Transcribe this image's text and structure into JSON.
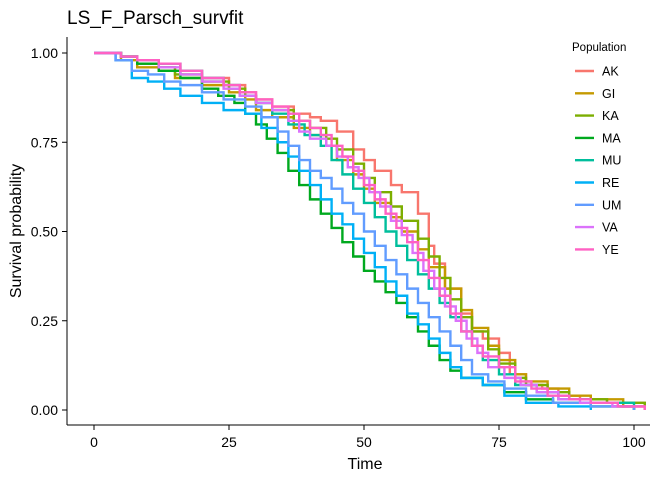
{
  "chart_data": {
    "type": "line",
    "title": "LS_F_Parsch_survfit",
    "xlabel": "Time",
    "ylabel": "Survival probability",
    "xlim": [
      0,
      102
    ],
    "ylim": [
      0,
      1.0
    ],
    "x_ticks": [
      0,
      25,
      50,
      75,
      100
    ],
    "x_tick_labels": [
      "0",
      "25",
      "50",
      "75",
      "100"
    ],
    "y_ticks": [
      0,
      0.25,
      0.5,
      0.75,
      1.0
    ],
    "y_tick_labels": [
      "0.00",
      "0.25",
      "0.50",
      "0.75",
      "1.00"
    ],
    "grid": false,
    "step": true,
    "legend": {
      "title": "Population",
      "position": "right"
    },
    "series": [
      {
        "name": "AK",
        "color": "#F8766D",
        "points": [
          [
            0,
            1.0
          ],
          [
            5,
            0.99
          ],
          [
            8,
            0.97
          ],
          [
            12,
            0.96
          ],
          [
            15,
            0.95
          ],
          [
            20,
            0.93
          ],
          [
            25,
            0.91
          ],
          [
            28,
            0.89
          ],
          [
            30,
            0.87
          ],
          [
            33,
            0.85
          ],
          [
            37,
            0.83
          ],
          [
            40,
            0.82
          ],
          [
            42,
            0.81
          ],
          [
            45,
            0.78
          ],
          [
            48,
            0.73
          ],
          [
            50,
            0.7
          ],
          [
            52,
            0.67
          ],
          [
            55,
            0.63
          ],
          [
            57,
            0.61
          ],
          [
            60,
            0.55
          ],
          [
            62,
            0.46
          ],
          [
            63,
            0.41
          ],
          [
            65,
            0.34
          ],
          [
            68,
            0.27
          ],
          [
            70,
            0.22
          ],
          [
            72,
            0.2
          ],
          [
            75,
            0.16
          ],
          [
            77,
            0.1
          ],
          [
            80,
            0.07
          ],
          [
            83,
            0.06
          ],
          [
            86,
            0.04
          ],
          [
            90,
            0.03
          ],
          [
            95,
            0.02
          ],
          [
            102,
            0.01
          ]
        ]
      },
      {
        "name": "GI",
        "color": "#C49A00",
        "points": [
          [
            0,
            1.0
          ],
          [
            5,
            0.98
          ],
          [
            8,
            0.96
          ],
          [
            12,
            0.95
          ],
          [
            15,
            0.93
          ],
          [
            20,
            0.91
          ],
          [
            25,
            0.89
          ],
          [
            28,
            0.87
          ],
          [
            30,
            0.84
          ],
          [
            33,
            0.82
          ],
          [
            37,
            0.79
          ],
          [
            40,
            0.77
          ],
          [
            43,
            0.74
          ],
          [
            45,
            0.7
          ],
          [
            48,
            0.66
          ],
          [
            50,
            0.62
          ],
          [
            52,
            0.58
          ],
          [
            55,
            0.54
          ],
          [
            57,
            0.5
          ],
          [
            60,
            0.45
          ],
          [
            62,
            0.4
          ],
          [
            65,
            0.34
          ],
          [
            68,
            0.28
          ],
          [
            70,
            0.23
          ],
          [
            73,
            0.18
          ],
          [
            75,
            0.14
          ],
          [
            78,
            0.1
          ],
          [
            80,
            0.08
          ],
          [
            84,
            0.06
          ],
          [
            88,
            0.04
          ],
          [
            92,
            0.03
          ],
          [
            98,
            0.01
          ],
          [
            102,
            0.0
          ]
        ]
      },
      {
        "name": "KA",
        "color": "#7CAE00",
        "points": [
          [
            0,
            1.0
          ],
          [
            5,
            0.99
          ],
          [
            8,
            0.97
          ],
          [
            12,
            0.96
          ],
          [
            15,
            0.94
          ],
          [
            20,
            0.92
          ],
          [
            25,
            0.9
          ],
          [
            28,
            0.88
          ],
          [
            30,
            0.86
          ],
          [
            33,
            0.84
          ],
          [
            37,
            0.81
          ],
          [
            40,
            0.79
          ],
          [
            43,
            0.76
          ],
          [
            45,
            0.73
          ],
          [
            48,
            0.69
          ],
          [
            50,
            0.65
          ],
          [
            52,
            0.61
          ],
          [
            55,
            0.57
          ],
          [
            57,
            0.53
          ],
          [
            60,
            0.48
          ],
          [
            62,
            0.43
          ],
          [
            64,
            0.37
          ],
          [
            66,
            0.31
          ],
          [
            68,
            0.26
          ],
          [
            70,
            0.22
          ],
          [
            73,
            0.17
          ],
          [
            75,
            0.13
          ],
          [
            78,
            0.09
          ],
          [
            80,
            0.07
          ],
          [
            84,
            0.05
          ],
          [
            88,
            0.03
          ],
          [
            95,
            0.02
          ],
          [
            102,
            0.0
          ]
        ]
      },
      {
        "name": "MA",
        "color": "#00A91F",
        "points": [
          [
            0,
            1.0
          ],
          [
            5,
            0.99
          ],
          [
            8,
            0.97
          ],
          [
            12,
            0.95
          ],
          [
            16,
            0.93
          ],
          [
            20,
            0.9
          ],
          [
            23,
            0.88
          ],
          [
            26,
            0.86
          ],
          [
            28,
            0.83
          ],
          [
            30,
            0.8
          ],
          [
            32,
            0.76
          ],
          [
            34,
            0.72
          ],
          [
            36,
            0.67
          ],
          [
            38,
            0.63
          ],
          [
            40,
            0.59
          ],
          [
            42,
            0.55
          ],
          [
            44,
            0.51
          ],
          [
            46,
            0.47
          ],
          [
            48,
            0.43
          ],
          [
            50,
            0.39
          ],
          [
            52,
            0.36
          ],
          [
            54,
            0.33
          ],
          [
            56,
            0.3
          ],
          [
            58,
            0.26
          ],
          [
            60,
            0.22
          ],
          [
            62,
            0.18
          ],
          [
            64,
            0.14
          ],
          [
            66,
            0.11
          ],
          [
            68,
            0.09
          ],
          [
            72,
            0.07
          ],
          [
            76,
            0.05
          ],
          [
            80,
            0.03
          ],
          [
            85,
            0.02
          ],
          [
            92,
            0.01
          ],
          [
            100,
            0.0
          ]
        ]
      },
      {
        "name": "MU",
        "color": "#00BE9C",
        "points": [
          [
            0,
            1.0
          ],
          [
            5,
            0.99
          ],
          [
            8,
            0.98
          ],
          [
            12,
            0.97
          ],
          [
            16,
            0.95
          ],
          [
            20,
            0.93
          ],
          [
            24,
            0.91
          ],
          [
            27,
            0.88
          ],
          [
            30,
            0.86
          ],
          [
            33,
            0.83
          ],
          [
            36,
            0.8
          ],
          [
            39,
            0.77
          ],
          [
            42,
            0.74
          ],
          [
            44,
            0.7
          ],
          [
            46,
            0.66
          ],
          [
            48,
            0.62
          ],
          [
            50,
            0.58
          ],
          [
            52,
            0.54
          ],
          [
            54,
            0.5
          ],
          [
            56,
            0.46
          ],
          [
            58,
            0.42
          ],
          [
            60,
            0.38
          ],
          [
            62,
            0.34
          ],
          [
            64,
            0.3
          ],
          [
            66,
            0.26
          ],
          [
            68,
            0.22
          ],
          [
            70,
            0.18
          ],
          [
            72,
            0.14
          ],
          [
            75,
            0.1
          ],
          [
            78,
            0.07
          ],
          [
            82,
            0.05
          ],
          [
            86,
            0.03
          ],
          [
            92,
            0.02
          ],
          [
            100,
            0.0
          ]
        ]
      },
      {
        "name": "RE",
        "color": "#00B0F6",
        "points": [
          [
            0,
            1.0
          ],
          [
            4,
            0.98
          ],
          [
            7,
            0.93
          ],
          [
            10,
            0.92
          ],
          [
            13,
            0.9
          ],
          [
            16,
            0.88
          ],
          [
            20,
            0.86
          ],
          [
            24,
            0.84
          ],
          [
            28,
            0.83
          ],
          [
            31,
            0.79
          ],
          [
            34,
            0.75
          ],
          [
            36,
            0.71
          ],
          [
            38,
            0.67
          ],
          [
            40,
            0.63
          ],
          [
            42,
            0.59
          ],
          [
            44,
            0.55
          ],
          [
            46,
            0.52
          ],
          [
            48,
            0.48
          ],
          [
            50,
            0.44
          ],
          [
            52,
            0.4
          ],
          [
            54,
            0.36
          ],
          [
            56,
            0.32
          ],
          [
            58,
            0.27
          ],
          [
            60,
            0.24
          ],
          [
            62,
            0.2
          ],
          [
            64,
            0.16
          ],
          [
            66,
            0.12
          ],
          [
            68,
            0.09
          ],
          [
            72,
            0.07
          ],
          [
            76,
            0.04
          ],
          [
            80,
            0.02
          ],
          [
            86,
            0.01
          ],
          [
            92,
            0.0
          ]
        ]
      },
      {
        "name": "UM",
        "color": "#619CFF",
        "points": [
          [
            0,
            1.0
          ],
          [
            4,
            0.98
          ],
          [
            7,
            0.95
          ],
          [
            10,
            0.94
          ],
          [
            13,
            0.92
          ],
          [
            16,
            0.91
          ],
          [
            20,
            0.89
          ],
          [
            24,
            0.87
          ],
          [
            28,
            0.85
          ],
          [
            31,
            0.82
          ],
          [
            34,
            0.78
          ],
          [
            36,
            0.74
          ],
          [
            38,
            0.7
          ],
          [
            40,
            0.67
          ],
          [
            42,
            0.65
          ],
          [
            44,
            0.62
          ],
          [
            46,
            0.58
          ],
          [
            48,
            0.55
          ],
          [
            50,
            0.5
          ],
          [
            52,
            0.46
          ],
          [
            54,
            0.42
          ],
          [
            56,
            0.38
          ],
          [
            58,
            0.34
          ],
          [
            60,
            0.3
          ],
          [
            62,
            0.26
          ],
          [
            64,
            0.22
          ],
          [
            66,
            0.18
          ],
          [
            68,
            0.14
          ],
          [
            70,
            0.1
          ],
          [
            73,
            0.08
          ],
          [
            76,
            0.06
          ],
          [
            80,
            0.04
          ],
          [
            85,
            0.02
          ],
          [
            92,
            0.01
          ],
          [
            100,
            0.0
          ]
        ]
      },
      {
        "name": "VA",
        "color": "#DB72FB",
        "points": [
          [
            0,
            1.0
          ],
          [
            5,
            0.99
          ],
          [
            8,
            0.98
          ],
          [
            12,
            0.96
          ],
          [
            16,
            0.94
          ],
          [
            20,
            0.92
          ],
          [
            24,
            0.9
          ],
          [
            27,
            0.88
          ],
          [
            30,
            0.86
          ],
          [
            33,
            0.84
          ],
          [
            36,
            0.81
          ],
          [
            38,
            0.78
          ],
          [
            40,
            0.76
          ],
          [
            43,
            0.74
          ],
          [
            45,
            0.71
          ],
          [
            47,
            0.68
          ],
          [
            49,
            0.65
          ],
          [
            51,
            0.61
          ],
          [
            53,
            0.57
          ],
          [
            55,
            0.53
          ],
          [
            57,
            0.49
          ],
          [
            59,
            0.44
          ],
          [
            61,
            0.39
          ],
          [
            63,
            0.34
          ],
          [
            65,
            0.29
          ],
          [
            67,
            0.25
          ],
          [
            69,
            0.2
          ],
          [
            71,
            0.16
          ],
          [
            73,
            0.12
          ],
          [
            76,
            0.09
          ],
          [
            79,
            0.07
          ],
          [
            82,
            0.05
          ],
          [
            86,
            0.03
          ],
          [
            90,
            0.02
          ],
          [
            96,
            0.01
          ],
          [
            102,
            0.01
          ]
        ]
      },
      {
        "name": "YE",
        "color": "#FF61C3",
        "points": [
          [
            0,
            1.0
          ],
          [
            5,
            0.99
          ],
          [
            8,
            0.98
          ],
          [
            12,
            0.97
          ],
          [
            16,
            0.95
          ],
          [
            20,
            0.93
          ],
          [
            24,
            0.91
          ],
          [
            27,
            0.89
          ],
          [
            30,
            0.87
          ],
          [
            33,
            0.85
          ],
          [
            36,
            0.83
          ],
          [
            38,
            0.81
          ],
          [
            40,
            0.79
          ],
          [
            42,
            0.77
          ],
          [
            44,
            0.74
          ],
          [
            46,
            0.71
          ],
          [
            48,
            0.67
          ],
          [
            50,
            0.63
          ],
          [
            52,
            0.59
          ],
          [
            54,
            0.55
          ],
          [
            56,
            0.51
          ],
          [
            58,
            0.47
          ],
          [
            60,
            0.42
          ],
          [
            62,
            0.37
          ],
          [
            64,
            0.32
          ],
          [
            66,
            0.27
          ],
          [
            68,
            0.22
          ],
          [
            70,
            0.18
          ],
          [
            72,
            0.15
          ],
          [
            75,
            0.12
          ],
          [
            78,
            0.08
          ],
          [
            81,
            0.06
          ],
          [
            84,
            0.04
          ],
          [
            88,
            0.03
          ],
          [
            92,
            0.02
          ],
          [
            97,
            0.01
          ],
          [
            102,
            0.0
          ]
        ]
      }
    ]
  }
}
